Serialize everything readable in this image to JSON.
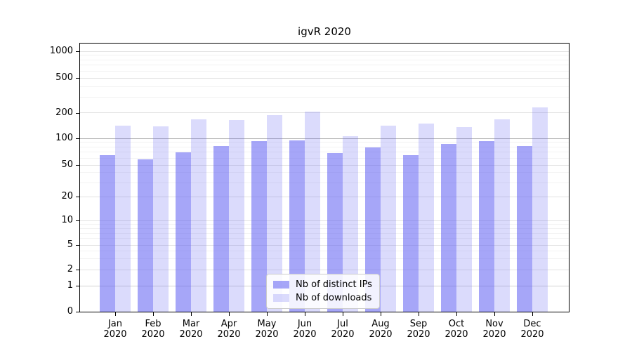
{
  "chart_data": {
    "type": "bar",
    "title": "igvR 2020",
    "categories": [
      "Jan",
      "Feb",
      "Mar",
      "Apr",
      "May",
      "Jun",
      "Jul",
      "Aug",
      "Sep",
      "Oct",
      "Nov",
      "Dec"
    ],
    "year_label": "2020",
    "series": [
      {
        "name": "Nb of distinct IPs",
        "color": "rgba(92,92,242,0.55)",
        "values": [
          65,
          58,
          69,
          82,
          93,
          94,
          68,
          79,
          64,
          86,
          93,
          82
        ]
      },
      {
        "name": "Nb of downloads",
        "color": "rgba(92,92,242,0.22)",
        "values": [
          140,
          138,
          168,
          163,
          186,
          207,
          105,
          142,
          150,
          135,
          166,
          230
        ]
      }
    ],
    "yticks": [
      0,
      1,
      2,
      5,
      10,
      20,
      50,
      100,
      200,
      500,
      1000
    ],
    "ylim": [
      0,
      1000
    ],
    "yaxis_scale": "symlog",
    "grid": true,
    "legend_position": "bottom-center",
    "xlabel": "",
    "ylabel": ""
  },
  "colors": {
    "bar_dark": "rgba(92,92,242,0.55)",
    "bar_light": "rgba(92,92,242,0.22)",
    "grid_minor": "#f2f2f2",
    "grid_major": "#e2e2e2",
    "grid_100": "#b5b5b5",
    "grid_1": "#d2d2d2",
    "axis": "#000000"
  }
}
